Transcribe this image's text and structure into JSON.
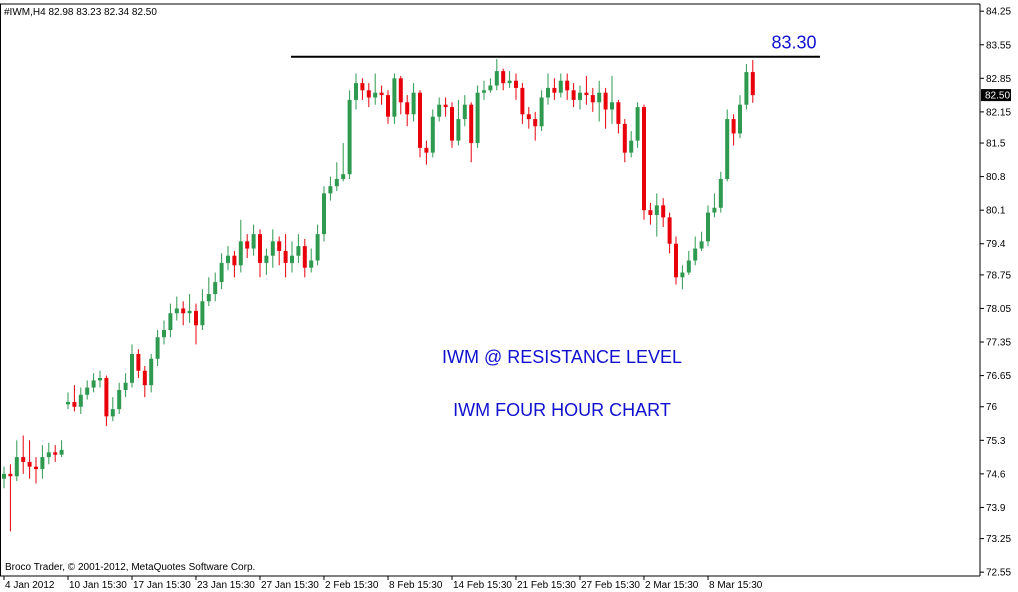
{
  "chart_data": {
    "type": "candlestick",
    "header": "#IWM,H4  82.98 83.23 82.34 82.50",
    "footer": "Broco Trader, © 2001-2012, MetaQuotes Software Corp.",
    "annotations": [
      "IWM @ RESISTANCE LEVEL",
      "IWM FOUR HOUR CHART"
    ],
    "resistance_level": {
      "value": 83.3,
      "label": "83.30"
    },
    "current_price": {
      "value": 82.5,
      "label": "82.50"
    },
    "up_color": "#2e9a50",
    "down_color": "#e8000b",
    "ylim": [
      72.47,
      84.4
    ],
    "yticks": [
      84.25,
      83.55,
      82.85,
      82.15,
      81.5,
      80.8,
      80.1,
      79.4,
      78.75,
      78.05,
      77.35,
      76.65,
      76,
      75.3,
      74.6,
      73.9,
      73.25,
      72.55
    ],
    "categories": [
      "4 Jan 2012",
      null,
      null,
      null,
      null,
      null,
      null,
      null,
      null,
      null,
      "10 Jan 15:30",
      null,
      null,
      null,
      null,
      null,
      null,
      null,
      null,
      null,
      "17 Jan 15:30",
      null,
      null,
      null,
      null,
      null,
      null,
      null,
      null,
      null,
      "23 Jan 15:30",
      null,
      null,
      null,
      null,
      null,
      null,
      null,
      null,
      null,
      "27 Jan 15:30",
      null,
      null,
      null,
      null,
      null,
      null,
      null,
      null,
      null,
      "2 Feb 15:30",
      null,
      null,
      null,
      null,
      null,
      null,
      null,
      null,
      null,
      "8 Feb 15:30",
      null,
      null,
      null,
      null,
      null,
      null,
      null,
      null,
      null,
      "14 Feb 15:30",
      null,
      null,
      null,
      null,
      null,
      null,
      null,
      null,
      null,
      "21 Feb 15:30",
      null,
      null,
      null,
      null,
      null,
      null,
      null,
      null,
      null,
      "27 Feb 15:30",
      null,
      null,
      null,
      null,
      null,
      null,
      null,
      null,
      null,
      "2 Mar 15:30",
      null,
      null,
      null,
      null,
      null,
      null,
      null,
      null,
      null,
      "8 Mar 15:30",
      null,
      null,
      null,
      null,
      null,
      null,
      null
    ],
    "open": [
      74.5,
      74.6,
      74.55,
      74.95,
      74.85,
      74.75,
      74.7,
      74.95,
      75.05,
      75,
      76.05,
      76.1,
      76,
      76.25,
      76.4,
      76.55,
      76.6,
      75.8,
      75.95,
      76.35,
      76.5,
      77.1,
      76.75,
      76.45,
      77,
      77.45,
      77.6,
      77.95,
      78.05,
      77.95,
      78,
      77.7,
      78.2,
      78.35,
      78.6,
      79,
      79.15,
      78.95,
      79.45,
      79.3,
      79.6,
      79,
      79.15,
      79.45,
      79.25,
      79,
      79.15,
      79.35,
      78.9,
      79.05,
      79.6,
      80.45,
      80.6,
      80.75,
      80.85,
      82.4,
      82.75,
      82.6,
      82.45,
      82.55,
      82.5,
      82.05,
      82.85,
      82.35,
      82.1,
      82.55,
      81.4,
      81.3,
      82.05,
      82.3,
      82.25,
      81.55,
      82,
      82.3,
      81.5,
      82.55,
      82.6,
      82.7,
      83,
      82.75,
      82.8,
      82.65,
      82.1,
      82,
      81.85,
      82.45,
      82.65,
      82.55,
      82.8,
      82.6,
      82.4,
      82.55,
      82.5,
      82.35,
      82.55,
      82.2,
      82.35,
      81.9,
      81.3,
      81.55,
      82.25,
      80.1,
      80,
      80.2,
      79.95,
      79.4,
      78.7,
      78.8,
      79.05,
      79.3,
      79.45,
      80.05,
      80.15,
      80.75,
      82,
      81.7,
      82.3,
      82.98
    ],
    "high": [
      74.75,
      74.8,
      75.3,
      75.4,
      75.3,
      74.95,
      75.2,
      75.25,
      75.2,
      75.3,
      76.3,
      76.45,
      76.4,
      76.55,
      76.7,
      76.75,
      76.65,
      76.2,
      76.5,
      76.7,
      77.3,
      77.2,
      76.85,
      77.1,
      77.6,
      77.8,
      78.15,
      78.3,
      78.2,
      78.35,
      78.15,
      78.45,
      78.7,
      78.8,
      79.2,
      79.35,
      79.25,
      79.9,
      79.6,
      79.8,
      79.7,
      79.3,
      79.7,
      79.55,
      79.6,
      79.45,
      79.6,
      79.5,
      79.3,
      79.8,
      80.6,
      80.8,
      81.1,
      81.5,
      82.6,
      82.95,
      82.85,
      82.75,
      82.95,
      82.7,
      82.6,
      82.95,
      82.9,
      82.5,
      82.75,
      82.6,
      81.55,
      82.2,
      82.45,
      82.45,
      82.35,
      82.4,
      82.5,
      82.35,
      82.7,
      82.8,
      82.85,
      83.25,
      83.05,
      83,
      82.95,
      82.75,
      82.25,
      82.15,
      82.6,
      82.95,
      82.85,
      82.95,
      82.95,
      82.75,
      82.7,
      82.9,
      82.65,
      82.8,
      82.65,
      82.9,
      82.4,
      82,
      81.75,
      82.35,
      82.3,
      80.25,
      80.45,
      80.35,
      80.05,
      79.55,
      78.95,
      79.25,
      79.55,
      79.65,
      80.2,
      80.45,
      80.9,
      82.2,
      82.1,
      82.5,
      83.15,
      83.23
    ],
    "low": [
      74.3,
      73.4,
      74.45,
      74.6,
      74.5,
      74.4,
      74.5,
      74.8,
      74.85,
      74.95,
      75.95,
      75.9,
      75.85,
      76.15,
      76.3,
      76.4,
      75.6,
      75.7,
      75.85,
      76.2,
      76.4,
      76.6,
      76.2,
      76.3,
      76.85,
      77.3,
      77.45,
      77.8,
      77.7,
      77.75,
      77.3,
      77.6,
      78.1,
      78.2,
      78.45,
      78.85,
      78.7,
      78.8,
      79.1,
      79.15,
      78.7,
      78.75,
      78.9,
      78.95,
      78.7,
      78.8,
      79,
      78.7,
      78.8,
      78.95,
      79.45,
      80.3,
      80.5,
      80.7,
      80.75,
      82.2,
      82.4,
      82.25,
      82.3,
      82.3,
      81.9,
      81.9,
      82.1,
      81.85,
      81.95,
      81.2,
      81.05,
      81.2,
      81.95,
      82.05,
      81.4,
      81.45,
      81.85,
      81.1,
      81.4,
      82.4,
      82.55,
      82.6,
      82.6,
      82.65,
      82.4,
      81.9,
      81.8,
      81.55,
      81.75,
      82.3,
      82.4,
      82.45,
      82.4,
      82.25,
      82.2,
      82.3,
      82.15,
      81.95,
      81.8,
      81.9,
      81.7,
      81.1,
      81.2,
      81.4,
      79.9,
      79.8,
      79.55,
      79.75,
      79.2,
      78.55,
      78.45,
      78.75,
      78.95,
      79.25,
      79.35,
      79.95,
      80.05,
      80.7,
      81.45,
      81.6,
      82.2,
      82.34
    ],
    "close": [
      74.6,
      74.55,
      74.95,
      74.85,
      74.75,
      74.7,
      74.95,
      75.05,
      75,
      75.1,
      76.1,
      76,
      76.25,
      76.4,
      76.55,
      76.6,
      75.8,
      75.95,
      76.35,
      76.5,
      77.1,
      76.75,
      76.45,
      77,
      77.45,
      77.6,
      77.95,
      78.05,
      77.95,
      78,
      77.7,
      78.2,
      78.35,
      78.6,
      79,
      79.15,
      78.95,
      79.45,
      79.3,
      79.6,
      79,
      79.15,
      79.45,
      79.25,
      79,
      79.15,
      79.35,
      78.9,
      79.05,
      79.6,
      80.45,
      80.6,
      80.75,
      80.85,
      82.4,
      82.75,
      82.6,
      82.45,
      82.55,
      82.5,
      82.05,
      82.85,
      82.35,
      82.1,
      82.55,
      81.4,
      81.3,
      82.05,
      82.3,
      82.25,
      81.55,
      82,
      82.3,
      81.5,
      82.55,
      82.6,
      82.7,
      83,
      82.75,
      82.8,
      82.65,
      82.1,
      82,
      81.85,
      82.45,
      82.65,
      82.55,
      82.8,
      82.6,
      82.4,
      82.55,
      82.5,
      82.35,
      82.55,
      82.2,
      82.35,
      81.9,
      81.3,
      81.55,
      82.25,
      80.1,
      80,
      80.2,
      79.95,
      79.4,
      78.7,
      78.8,
      79.05,
      79.3,
      79.45,
      80.05,
      80.15,
      80.75,
      82,
      81.7,
      82.3,
      82.98,
      82.5
    ]
  }
}
